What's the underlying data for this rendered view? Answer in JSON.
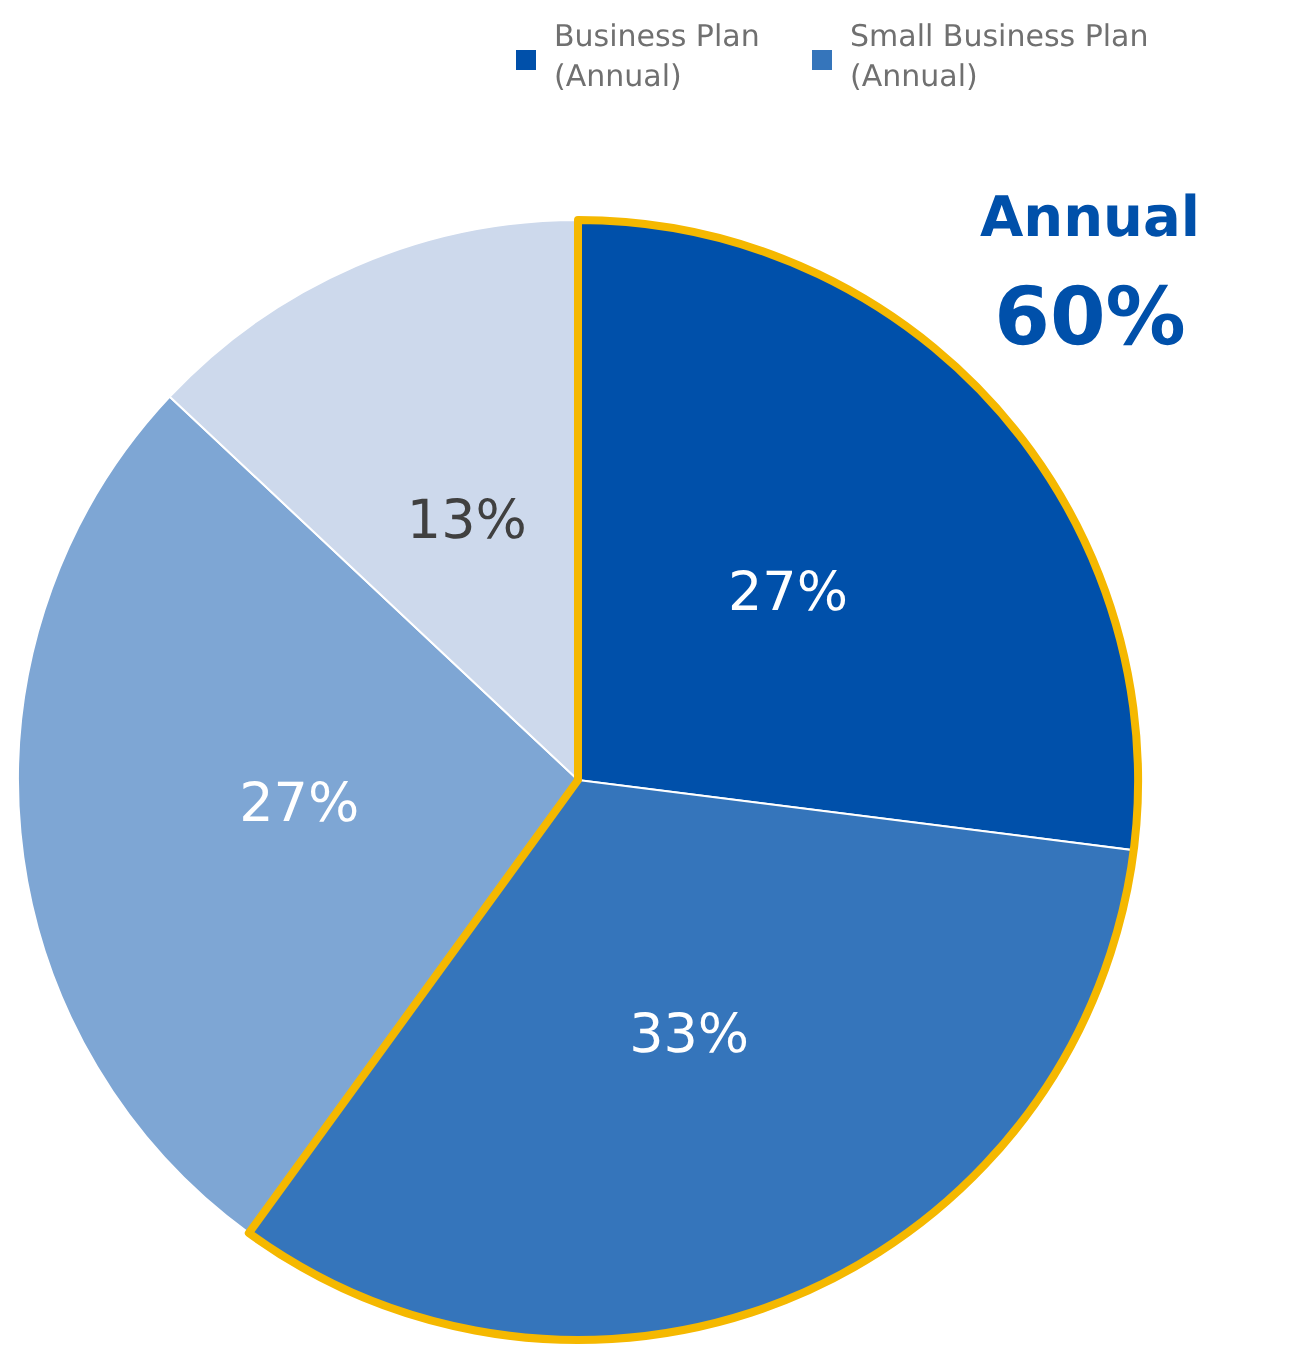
{
  "chart_data": {
    "type": "pie",
    "categories": [
      "Business Plan (Annual)",
      "Small Business Plan (Annual)",
      null,
      null
    ],
    "values": [
      27,
      33,
      27,
      13
    ],
    "colors": [
      "#0050aa",
      "#3575bb",
      "#7ea6d4",
      "#cdd9ec"
    ],
    "value_labels": [
      "27%",
      "33%",
      "27%",
      "13%"
    ],
    "legend": "top right",
    "annotations": [
      "Annual",
      "60%"
    ]
  }
}
